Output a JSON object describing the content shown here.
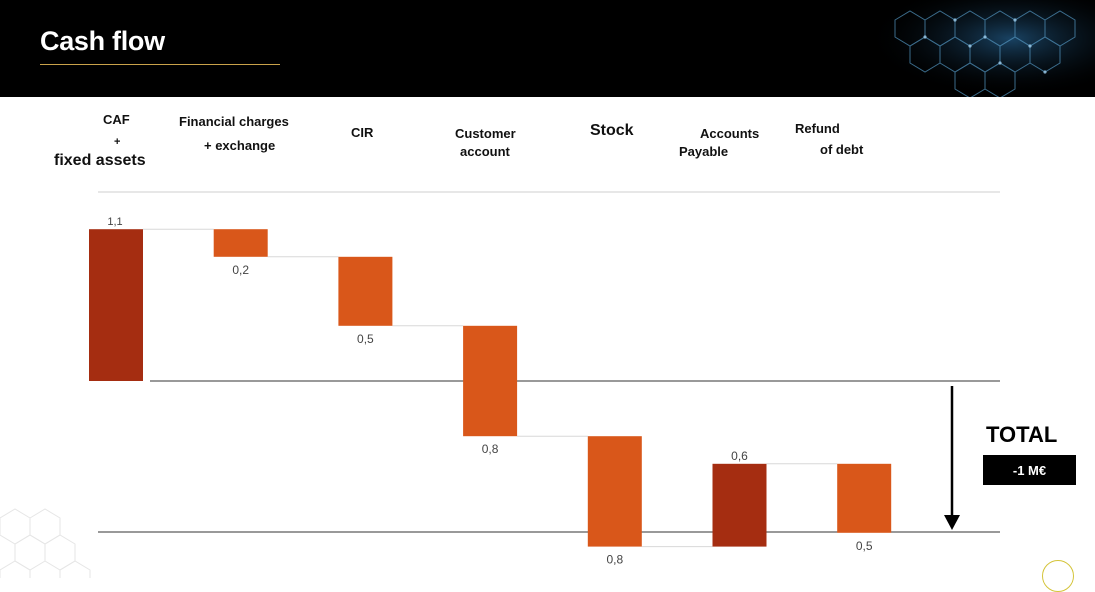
{
  "header": {
    "title": "Cash flow"
  },
  "categories": [
    {
      "lines": [
        "CAF",
        "+",
        "fixed assets"
      ]
    },
    {
      "lines": [
        "Financial charges",
        "+ exchange"
      ]
    },
    {
      "lines": [
        "CIR"
      ]
    },
    {
      "lines": [
        "Customer",
        "account"
      ]
    },
    {
      "lines": [
        "Stock"
      ]
    },
    {
      "lines": [
        "Accounts",
        "Payable"
      ]
    },
    {
      "lines": [
        "Refund",
        "of debt"
      ]
    }
  ],
  "total": {
    "label": "TOTAL",
    "value": "-1 M€"
  },
  "colors": {
    "dark_bar": "#a52d11",
    "orange_bar": "#d9571a",
    "header_bg": "#000000",
    "accent_line": "#c9a24a"
  },
  "chart_data": {
    "type": "waterfall",
    "categories": [
      "CAF + fixed assets",
      "Financial charges + exchange",
      "CIR",
      "Customer account",
      "Stock",
      "Accounts Payable",
      "Refund of debt"
    ],
    "values": [
      1.1,
      -0.2,
      -0.5,
      -0.8,
      -0.8,
      0.6,
      -0.5
    ],
    "labels": [
      "1,1",
      "0,2",
      "0,5",
      "0,8",
      "0,8",
      "0,6",
      "0,5"
    ],
    "bar_colors": [
      "dark",
      "orange",
      "orange",
      "orange",
      "orange",
      "dark",
      "orange"
    ],
    "total": -1.0,
    "total_label": "-1 M€"
  }
}
